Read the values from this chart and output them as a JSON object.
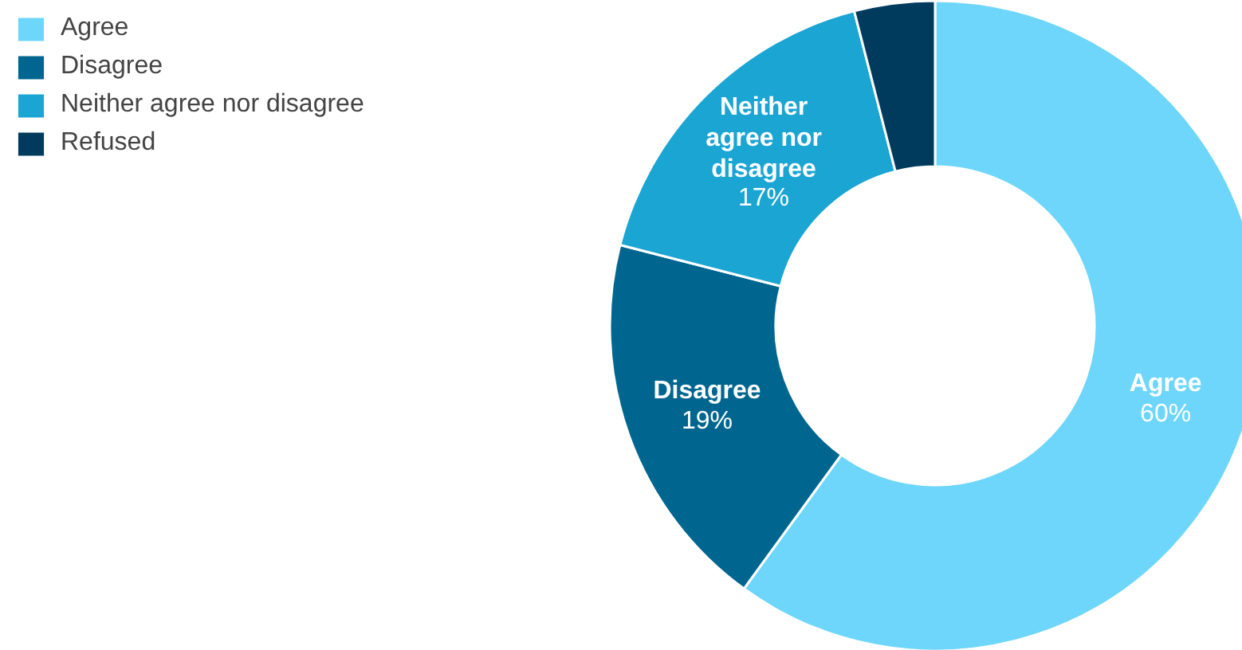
{
  "chart_data": {
    "type": "donut",
    "categories": [
      "Agree",
      "Disagree",
      "Neither agree nor disagree",
      "Refused"
    ],
    "values": [
      60,
      19,
      17,
      4
    ],
    "colors": [
      "#6dd6fa",
      "#00668f",
      "#1aa5d3",
      "#003b5e"
    ],
    "value_labels": [
      "60%",
      "19%",
      "17%",
      null
    ],
    "legend": "top left"
  }
}
